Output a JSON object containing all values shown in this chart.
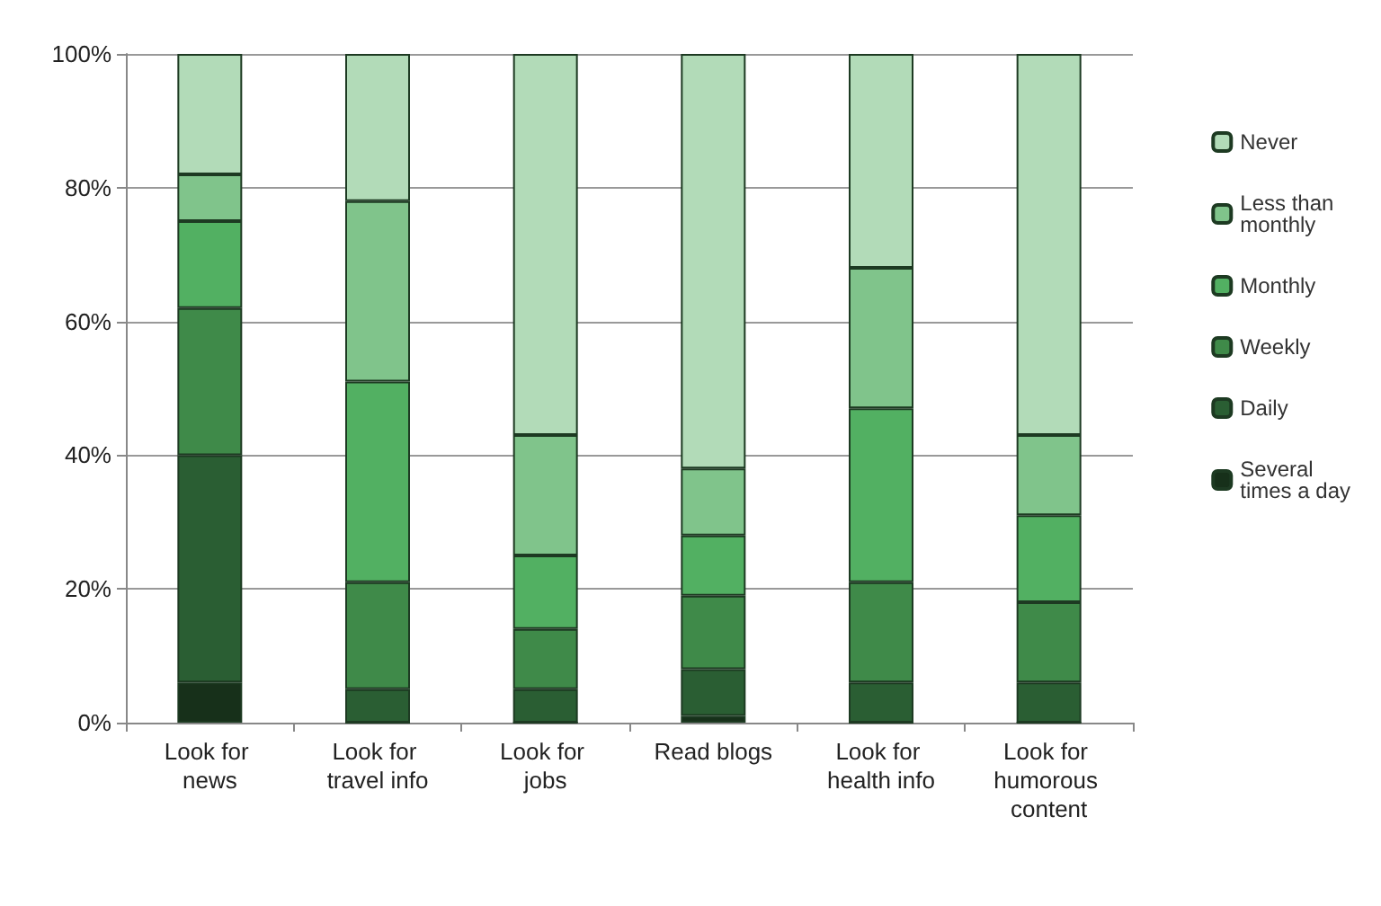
{
  "chart_data": {
    "type": "bar",
    "stacked": true,
    "categories": [
      "Look for news",
      "Look for travel info",
      "Look for jobs",
      "Read blogs",
      "Look for health info",
      "Look for humorous content"
    ],
    "series": [
      {
        "name": "Several times a day",
        "color": "#17301a",
        "values": [
          6,
          0,
          0,
          1,
          0,
          0
        ]
      },
      {
        "name": "Daily",
        "color": "#2a5e33",
        "values": [
          34,
          5,
          5,
          7,
          6,
          6
        ]
      },
      {
        "name": "Weekly",
        "color": "#3f8a49",
        "values": [
          22,
          16,
          9,
          11,
          15,
          12
        ]
      },
      {
        "name": "Monthly",
        "color": "#52b062",
        "values": [
          13,
          30,
          11,
          9,
          26,
          13
        ]
      },
      {
        "name": "Less than monthly",
        "color": "#80c48b",
        "values": [
          7,
          27,
          18,
          10,
          21,
          12
        ]
      },
      {
        "name": "Never",
        "color": "#b2dbb8",
        "values": [
          18,
          22,
          57,
          62,
          32,
          57
        ]
      }
    ],
    "ylim": [
      0,
      100
    ],
    "yticks": [
      {
        "value": 0,
        "label": "0%"
      },
      {
        "value": 20,
        "label": "20%"
      },
      {
        "value": 40,
        "label": "40%"
      },
      {
        "value": 60,
        "label": "60%"
      },
      {
        "value": 80,
        "label": "80%"
      },
      {
        "value": 100,
        "label": "100%"
      }
    ],
    "grid": "y",
    "legend": "right"
  }
}
